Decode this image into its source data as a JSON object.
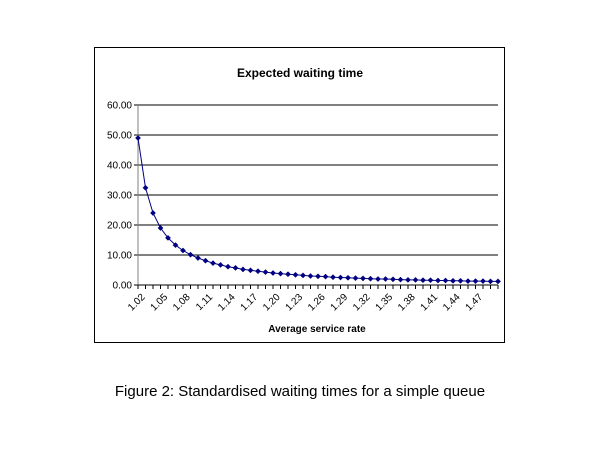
{
  "caption": "Figure 2: Standardised waiting times for a simple queue",
  "chart_data": {
    "type": "line",
    "title": "Expected waiting time",
    "xlabel": "Average service rate",
    "ylabel": "",
    "ylim": [
      0,
      60
    ],
    "y_ticks": [
      "0.00",
      "10.00",
      "20.00",
      "30.00",
      "40.00",
      "50.00",
      "60.00"
    ],
    "x_tick_labels": [
      "1.02",
      "1.05",
      "1.08",
      "1.11",
      "1.14",
      "1.17",
      "1.20",
      "1.23",
      "1.26",
      "1.29",
      "1.32",
      "1.35",
      "1.38",
      "1.41",
      "1.44",
      "1.47"
    ],
    "grid": true,
    "legend": "none",
    "line_color": "#000080",
    "x": [
      1.02,
      1.03,
      1.04,
      1.05,
      1.06,
      1.07,
      1.08,
      1.09,
      1.1,
      1.11,
      1.12,
      1.13,
      1.14,
      1.15,
      1.16,
      1.17,
      1.18,
      1.19,
      1.2,
      1.21,
      1.22,
      1.23,
      1.24,
      1.25,
      1.26,
      1.27,
      1.28,
      1.29,
      1.3,
      1.31,
      1.32,
      1.33,
      1.34,
      1.35,
      1.36,
      1.37,
      1.38,
      1.39,
      1.4,
      1.41,
      1.42,
      1.43,
      1.44,
      1.45,
      1.46,
      1.47,
      1.48,
      1.49,
      1.5
    ],
    "values": [
      49.0,
      32.4,
      24.0,
      19.0,
      15.7,
      13.3,
      11.5,
      10.1,
      9.0,
      8.1,
      7.3,
      6.7,
      6.1,
      5.7,
      5.2,
      4.9,
      4.6,
      4.3,
      4.0,
      3.8,
      3.6,
      3.4,
      3.2,
      3.0,
      2.9,
      2.8,
      2.6,
      2.5,
      2.4,
      2.3,
      2.2,
      2.1,
      2.0,
      2.0,
      1.9,
      1.8,
      1.7,
      1.7,
      1.6,
      1.6,
      1.5,
      1.5,
      1.4,
      1.4,
      1.3,
      1.3,
      1.3,
      1.2,
      1.2
    ]
  }
}
